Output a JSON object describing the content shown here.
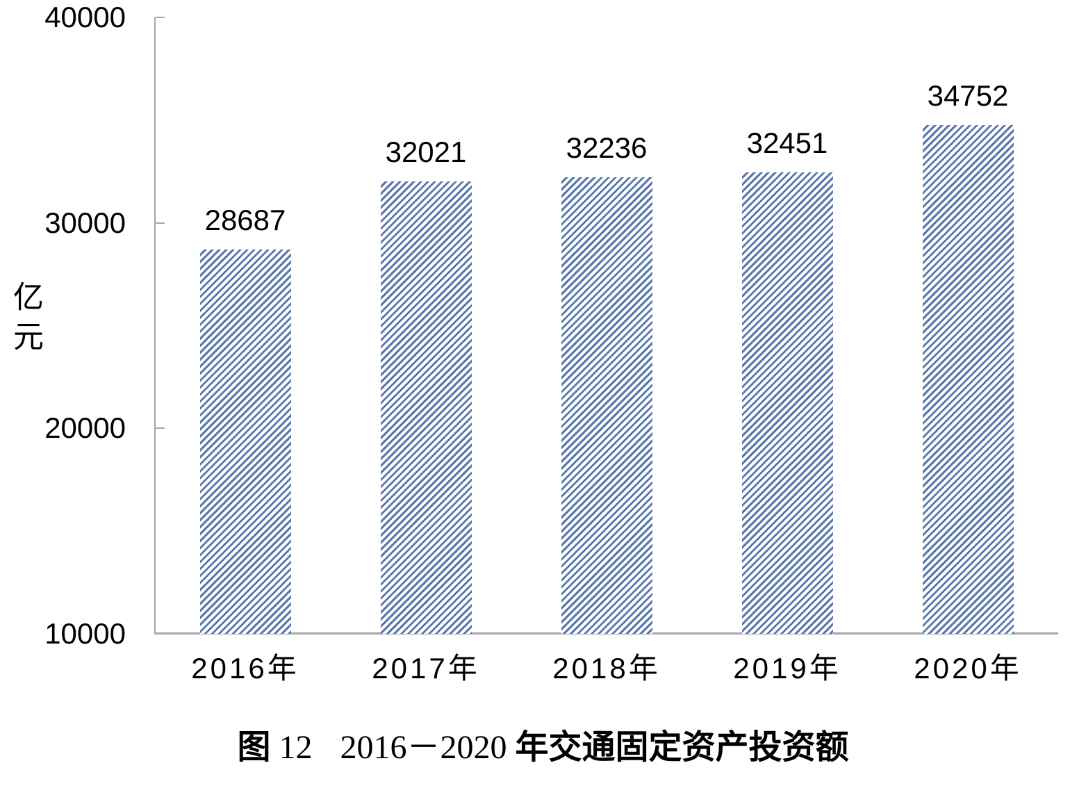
{
  "chart_data": {
    "type": "bar",
    "categories": [
      "2016年",
      "2017年",
      "2018年",
      "2019年",
      "2020年"
    ],
    "values": [
      28687,
      32021,
      32236,
      32451,
      34752
    ],
    "title": "图 12　2016－2020 年交通固定资产投资额",
    "xlabel": "",
    "ylabel": "亿元",
    "ylim": [
      10000,
      40000
    ],
    "yticks": [
      10000,
      20000,
      30000,
      40000
    ],
    "grid": false,
    "legend": "none",
    "data_labels": true,
    "bar_fill_style": "diagonal-hatch",
    "bar_color": "#5878ab",
    "axis_color": "#a6a6a6",
    "text_color": "#000000"
  },
  "y_axis": {
    "unit_label": "亿元"
  },
  "caption": {
    "fig_cjk": "图",
    "fig_no": "12",
    "year_range": "2016－2020",
    "rest": "年交通固定资产投资额"
  }
}
